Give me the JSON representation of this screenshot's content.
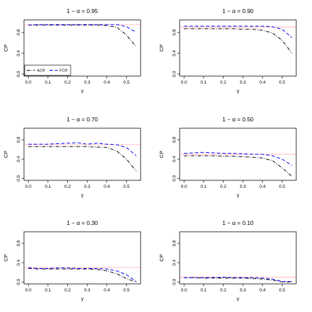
{
  "chart_data": {
    "type": "line",
    "colors": {
      "ACR": "#000000",
      "FCR": "#0000ff",
      "target": "#ff0000"
    },
    "legend": {
      "placement": "bottom-left",
      "entries": [
        "ACR",
        "FCR"
      ]
    },
    "panels": [
      {
        "title": "1 − α = 0.95",
        "xlabel": "γ",
        "ylabel": "CP",
        "xlim": [
          0,
          0.55
        ],
        "ylim": [
          0,
          1
        ],
        "xticks": [
          "0.0",
          "0.1",
          "0.2",
          "0.3",
          "0.4",
          "0.5"
        ],
        "yticks": [
          "0.0",
          "0.4",
          "0.8"
        ],
        "target": 0.95,
        "x": [
          0,
          0.05,
          0.1,
          0.15,
          0.2,
          0.25,
          0.3,
          0.35,
          0.4,
          0.45,
          0.5,
          0.55
        ],
        "series": [
          {
            "name": "ACR",
            "values": [
              0.94,
              0.94,
              0.94,
              0.94,
              0.94,
              0.94,
              0.94,
              0.94,
              0.93,
              0.9,
              0.75,
              0.52
            ]
          },
          {
            "name": "FCR",
            "values": [
              0.94,
              0.95,
              0.95,
              0.95,
              0.95,
              0.95,
              0.95,
              0.95,
              0.95,
              0.95,
              0.91,
              0.8
            ]
          }
        ]
      },
      {
        "title": "1 − α = 0.90",
        "xlabel": "γ",
        "ylabel": "CP",
        "xlim": [
          0,
          0.55
        ],
        "ylim": [
          0,
          1
        ],
        "xticks": [
          "0.0",
          "0.1",
          "0.2",
          "0.3",
          "0.4",
          "0.5"
        ],
        "yticks": [
          "0.0",
          "0.4",
          "0.8"
        ],
        "target": 0.9,
        "x": [
          0,
          0.05,
          0.1,
          0.15,
          0.2,
          0.25,
          0.3,
          0.35,
          0.4,
          0.45,
          0.5,
          0.55
        ],
        "series": [
          {
            "name": "ACR",
            "values": [
              0.87,
              0.87,
              0.87,
              0.87,
              0.87,
              0.87,
              0.86,
              0.86,
              0.84,
              0.79,
              0.65,
              0.4
            ]
          },
          {
            "name": "FCR",
            "values": [
              0.92,
              0.92,
              0.92,
              0.92,
              0.92,
              0.92,
              0.92,
              0.92,
              0.92,
              0.91,
              0.86,
              0.7
            ]
          }
        ]
      },
      {
        "title": "1 − α = 0.70",
        "xlabel": "γ",
        "ylabel": "CP",
        "xlim": [
          0,
          0.55
        ],
        "ylim": [
          0,
          1
        ],
        "xticks": [
          "0.0",
          "0.1",
          "0.2",
          "0.3",
          "0.4",
          "0.5"
        ],
        "yticks": [
          "0.0",
          "0.4",
          "0.8"
        ],
        "target": 0.7,
        "x": [
          0,
          0.05,
          0.1,
          0.15,
          0.2,
          0.25,
          0.3,
          0.35,
          0.4,
          0.45,
          0.5,
          0.55
        ],
        "series": [
          {
            "name": "ACR",
            "values": [
              0.66,
              0.66,
              0.66,
              0.66,
              0.66,
              0.66,
              0.66,
              0.65,
              0.64,
              0.57,
              0.4,
              0.15
            ]
          },
          {
            "name": "FCR",
            "values": [
              0.71,
              0.71,
              0.71,
              0.72,
              0.73,
              0.74,
              0.71,
              0.73,
              0.71,
              0.7,
              0.64,
              0.47
            ]
          }
        ]
      },
      {
        "title": "1 − α = 0.50",
        "xlabel": "γ",
        "ylabel": "CP",
        "xlim": [
          0,
          0.55
        ],
        "ylim": [
          0,
          1
        ],
        "xticks": [
          "0.0",
          "0.1",
          "0.2",
          "0.3",
          "0.4",
          "0.5"
        ],
        "yticks": [
          "0.0",
          "0.4",
          "0.8"
        ],
        "target": 0.5,
        "x": [
          0,
          0.05,
          0.1,
          0.15,
          0.2,
          0.25,
          0.3,
          0.35,
          0.4,
          0.45,
          0.5,
          0.55
        ],
        "series": [
          {
            "name": "ACR",
            "values": [
              0.47,
              0.47,
              0.47,
              0.47,
              0.46,
              0.46,
              0.45,
              0.44,
              0.42,
              0.37,
              0.22,
              0.04
            ]
          },
          {
            "name": "FCR",
            "values": [
              0.52,
              0.53,
              0.54,
              0.53,
              0.52,
              0.52,
              0.51,
              0.5,
              0.5,
              0.47,
              0.4,
              0.27
            ]
          }
        ]
      },
      {
        "title": "1 − α = 0.30",
        "xlabel": "γ",
        "ylabel": "CP",
        "xlim": [
          0,
          0.55
        ],
        "ylim": [
          0,
          1
        ],
        "xticks": [
          "0.0",
          "0.1",
          "0.2",
          "0.3",
          "0.4",
          "0.5"
        ],
        "yticks": [
          "0.0",
          "0.4",
          "0.8"
        ],
        "target": 0.3,
        "x": [
          0,
          0.05,
          0.1,
          0.15,
          0.2,
          0.25,
          0.3,
          0.35,
          0.4,
          0.45,
          0.5,
          0.55
        ],
        "series": [
          {
            "name": "ACR",
            "values": [
              0.28,
              0.27,
              0.27,
              0.27,
              0.27,
              0.27,
              0.27,
              0.26,
              0.23,
              0.17,
              0.07,
              0.0
            ]
          },
          {
            "name": "FCR",
            "values": [
              0.29,
              0.28,
              0.28,
              0.29,
              0.29,
              0.28,
              0.28,
              0.28,
              0.27,
              0.23,
              0.15,
              0.01
            ]
          }
        ]
      },
      {
        "title": "1 − α = 0.10",
        "xlabel": "γ",
        "ylabel": "CP",
        "xlim": [
          0,
          0.55
        ],
        "ylim": [
          0,
          1
        ],
        "xticks": [
          "0.0",
          "0.1",
          "0.2",
          "0.3",
          "0.4",
          "0.5"
        ],
        "yticks": [
          "0.0",
          "0.4",
          "0.8"
        ],
        "target": 0.1,
        "x": [
          0,
          0.05,
          0.1,
          0.15,
          0.2,
          0.25,
          0.3,
          0.35,
          0.4,
          0.45,
          0.5,
          0.55
        ],
        "series": [
          {
            "name": "ACR",
            "values": [
              0.09,
              0.09,
              0.08,
              0.08,
              0.08,
              0.08,
              0.08,
              0.07,
              0.06,
              0.04,
              0.0,
              0.0
            ]
          },
          {
            "name": "FCR",
            "values": [
              0.09,
              0.09,
              0.09,
              0.09,
              0.1,
              0.09,
              0.09,
              0.09,
              0.08,
              0.06,
              0.01,
              0.01
            ]
          }
        ]
      }
    ]
  }
}
